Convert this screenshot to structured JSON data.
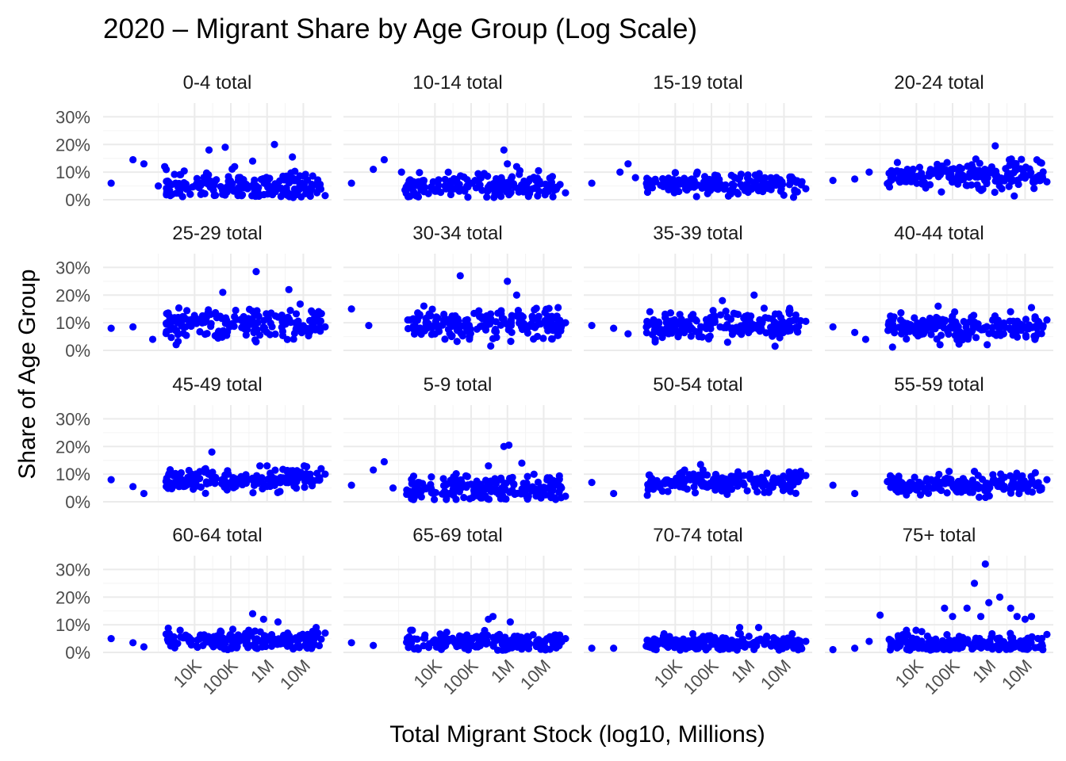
{
  "chart_data": {
    "type": "scatter",
    "title": "2020 – Migrant Share by Age Group (Log Scale)",
    "xlabel": "Total Migrant Stock (log10, Millions)",
    "ylabel": "Share of Age Group",
    "x_scale": "log10",
    "xlim": [
      30,
      60000000
    ],
    "ylim": [
      0,
      0.35
    ],
    "x_ticks": [
      {
        "value": 10000,
        "label": "10K"
      },
      {
        "value": 100000,
        "label": "100K"
      },
      {
        "value": 1000000,
        "label": "1M"
      },
      {
        "value": 10000000,
        "label": "10M"
      }
    ],
    "y_ticks": [
      {
        "value": 0,
        "label": "0%"
      },
      {
        "value": 0.1,
        "label": "10%"
      },
      {
        "value": 0.2,
        "label": "20%"
      },
      {
        "value": 0.3,
        "label": "30%"
      }
    ],
    "point_color": "#0000ff",
    "grid": true,
    "facets": [
      {
        "label": "0-4 total",
        "mean": 0.05,
        "spread": 0.028,
        "points": [
          [
            50,
            0.06
          ],
          [
            200,
            0.145
          ],
          [
            400,
            0.13
          ],
          [
            1500,
            0.12
          ],
          [
            1000,
            0.05
          ],
          [
            3000,
            0.06
          ],
          [
            25000,
            0.18
          ],
          [
            70000,
            0.19
          ],
          [
            400000,
            0.14
          ],
          [
            1600000,
            0.2
          ],
          [
            5000000,
            0.155
          ],
          [
            8000000,
            0.05
          ],
          [
            9000000,
            0.06
          ],
          [
            40000000,
            0.015
          ]
        ]
      },
      {
        "label": "10-14 total",
        "mean": 0.05,
        "spread": 0.022,
        "points": [
          [
            50,
            0.06
          ],
          [
            200,
            0.11
          ],
          [
            400,
            0.145
          ],
          [
            1200,
            0.1
          ],
          [
            1500,
            0.035
          ],
          [
            800000,
            0.18
          ],
          [
            1000000,
            0.13
          ],
          [
            1800000,
            0.12
          ],
          [
            40000000,
            0.025
          ]
        ]
      },
      {
        "label": "15-19 total",
        "mean": 0.055,
        "spread": 0.018,
        "points": [
          [
            50,
            0.06
          ],
          [
            300,
            0.1
          ],
          [
            500,
            0.13
          ],
          [
            800,
            0.08
          ],
          [
            40000000,
            0.04
          ]
        ]
      },
      {
        "label": "20-24 total",
        "mean": 0.085,
        "spread": 0.025,
        "points": [
          [
            50,
            0.07
          ],
          [
            200,
            0.075
          ],
          [
            500,
            0.1
          ],
          [
            3000,
            0.135
          ],
          [
            1500000,
            0.195
          ],
          [
            40000000,
            0.065
          ]
        ]
      },
      {
        "label": "25-29 total",
        "mean": 0.095,
        "spread": 0.03,
        "points": [
          [
            50,
            0.08
          ],
          [
            200,
            0.085
          ],
          [
            700,
            0.04
          ],
          [
            60000,
            0.21
          ],
          [
            500000,
            0.285
          ],
          [
            4000000,
            0.22
          ],
          [
            40000000,
            0.085
          ]
        ]
      },
      {
        "label": "30-34 total",
        "mean": 0.095,
        "spread": 0.028,
        "points": [
          [
            50,
            0.15
          ],
          [
            150,
            0.09
          ],
          [
            50000,
            0.27
          ],
          [
            1000000,
            0.25
          ],
          [
            1800000,
            0.2
          ],
          [
            40000000,
            0.1
          ]
        ]
      },
      {
        "label": "35-39 total",
        "mean": 0.09,
        "spread": 0.025,
        "points": [
          [
            50,
            0.09
          ],
          [
            200,
            0.08
          ],
          [
            500,
            0.06
          ],
          [
            2000,
            0.14
          ],
          [
            200000,
            0.18
          ],
          [
            1500000,
            0.2
          ],
          [
            40000000,
            0.105
          ]
        ]
      },
      {
        "label": "40-44 total",
        "mean": 0.085,
        "spread": 0.022,
        "points": [
          [
            50,
            0.085
          ],
          [
            200,
            0.065
          ],
          [
            400,
            0.04
          ],
          [
            40000,
            0.16
          ],
          [
            15000000,
            0.155
          ],
          [
            40000000,
            0.11
          ]
        ]
      },
      {
        "label": "45-49 total",
        "mean": 0.08,
        "spread": 0.02,
        "points": [
          [
            50,
            0.08
          ],
          [
            200,
            0.055
          ],
          [
            400,
            0.03
          ],
          [
            30000,
            0.18
          ],
          [
            1000000,
            0.13
          ],
          [
            40000000,
            0.1
          ]
        ]
      },
      {
        "label": "5-9 total",
        "mean": 0.045,
        "spread": 0.025,
        "points": [
          [
            50,
            0.06
          ],
          [
            200,
            0.115
          ],
          [
            400,
            0.145
          ],
          [
            700,
            0.05
          ],
          [
            8000,
            0.09
          ],
          [
            300000,
            0.13
          ],
          [
            800000,
            0.2
          ],
          [
            1100000,
            0.205
          ],
          [
            2500000,
            0.14
          ],
          [
            40000000,
            0.02
          ]
        ]
      },
      {
        "label": "50-54 total",
        "mean": 0.07,
        "spread": 0.018,
        "points": [
          [
            50,
            0.07
          ],
          [
            200,
            0.03
          ],
          [
            50000,
            0.135
          ],
          [
            40000000,
            0.095
          ]
        ]
      },
      {
        "label": "55-59 total",
        "mean": 0.06,
        "spread": 0.018,
        "points": [
          [
            50,
            0.06
          ],
          [
            200,
            0.03
          ],
          [
            80000,
            0.11
          ],
          [
            400000,
            0.11
          ],
          [
            40000000,
            0.08
          ]
        ]
      },
      {
        "label": "60-64 total",
        "mean": 0.045,
        "spread": 0.018,
        "points": [
          [
            50,
            0.05
          ],
          [
            200,
            0.035
          ],
          [
            400,
            0.02
          ],
          [
            4000,
            0.08
          ],
          [
            400000,
            0.14
          ],
          [
            800000,
            0.12
          ],
          [
            2000000,
            0.11
          ],
          [
            40000000,
            0.07
          ]
        ]
      },
      {
        "label": "65-69 total",
        "mean": 0.035,
        "spread": 0.018,
        "points": [
          [
            50,
            0.035
          ],
          [
            200,
            0.025
          ],
          [
            300000,
            0.12
          ],
          [
            400000,
            0.13
          ],
          [
            1200000,
            0.11
          ],
          [
            40000000,
            0.05
          ]
        ]
      },
      {
        "label": "70-74 total",
        "mean": 0.03,
        "spread": 0.015,
        "points": [
          [
            50,
            0.015
          ],
          [
            200,
            0.015
          ],
          [
            600000,
            0.09
          ],
          [
            2000000,
            0.09
          ],
          [
            40000000,
            0.04
          ]
        ]
      },
      {
        "label": "75+ total",
        "mean": 0.03,
        "spread": 0.02,
        "points": [
          [
            50,
            0.01
          ],
          [
            200,
            0.015
          ],
          [
            500,
            0.04
          ],
          [
            1000,
            0.135
          ],
          [
            60000,
            0.16
          ],
          [
            100000,
            0.13
          ],
          [
            250000,
            0.16
          ],
          [
            400000,
            0.25
          ],
          [
            600000,
            0.13
          ],
          [
            800000,
            0.32
          ],
          [
            1000000,
            0.18
          ],
          [
            2000000,
            0.2
          ],
          [
            4000000,
            0.16
          ],
          [
            6000000,
            0.13
          ],
          [
            10000000,
            0.12
          ],
          [
            15000000,
            0.13
          ],
          [
            40000000,
            0.065
          ]
        ]
      }
    ]
  }
}
